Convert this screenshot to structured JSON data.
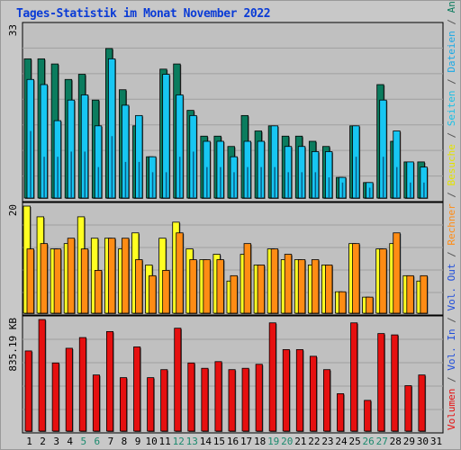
{
  "title": "Tages-Statistik im Monat November 2022",
  "colors": {
    "anfragen": "#0b7c5e",
    "dateien": "#17c6f2",
    "seiten": "#19b3d9",
    "besuche": "#ffff22",
    "rechner": "#ff8c14",
    "volumen": "#e61010",
    "in": "#1f4ddb",
    "out": "#1f4ddb",
    "panel_bg": "#c0c0c0",
    "frame_bg": "#c8c8c8",
    "title": "#0a3bd6",
    "weekend_label": "#1b8a6e"
  },
  "chart_data": [
    {
      "type": "bar",
      "name_panel": "hits",
      "ymax_label": "33",
      "ylim": [
        0,
        33
      ],
      "categories": [
        "1",
        "2",
        "3",
        "4",
        "5",
        "6",
        "7",
        "8",
        "9",
        "10",
        "11",
        "12",
        "13",
        "14",
        "15",
        "16",
        "17",
        "18",
        "19",
        "20",
        "21",
        "22",
        "23",
        "24",
        "25",
        "26",
        "27",
        "28",
        "29",
        "30",
        "31"
      ],
      "series": [
        {
          "name": "Anfragen",
          "values": [
            27,
            27,
            26,
            23,
            24,
            19,
            29,
            21,
            14,
            8,
            25,
            26,
            17,
            12,
            12,
            10,
            16,
            13,
            14,
            12,
            12,
            11,
            10,
            4,
            14,
            3,
            22,
            11,
            7,
            7,
            0
          ]
        },
        {
          "name": "Dateien",
          "values": [
            23,
            22,
            15,
            19,
            20,
            14,
            27,
            18,
            16,
            8,
            24,
            20,
            16,
            11,
            11,
            8,
            11,
            11,
            14,
            10,
            10,
            9,
            9,
            4,
            14,
            3,
            19,
            13,
            7,
            6,
            0
          ]
        },
        {
          "name": "Seiten",
          "values": [
            13,
            8,
            8,
            9,
            9,
            6,
            12,
            7,
            7,
            5,
            5,
            8,
            9,
            6,
            6,
            5,
            6,
            6,
            6,
            5,
            5,
            5,
            4,
            3,
            8,
            2,
            8,
            6,
            3,
            3,
            0
          ]
        }
      ]
    },
    {
      "type": "bar",
      "name_panel": "visits",
      "ymax_label": "20",
      "ylim": [
        0,
        20
      ],
      "categories": [
        "1",
        "2",
        "3",
        "4",
        "5",
        "6",
        "7",
        "8",
        "9",
        "10",
        "11",
        "12",
        "13",
        "14",
        "15",
        "16",
        "17",
        "18",
        "19",
        "20",
        "21",
        "22",
        "23",
        "24",
        "25",
        "26",
        "27",
        "28",
        "29",
        "30",
        "31"
      ],
      "series": [
        {
          "name": "Besuche",
          "values": [
            20,
            18,
            12,
            13,
            18,
            14,
            14,
            12,
            15,
            9,
            14,
            17,
            12,
            10,
            11,
            6,
            11,
            9,
            12,
            10,
            10,
            9,
            9,
            4,
            13,
            3,
            12,
            13,
            7,
            6,
            0
          ]
        },
        {
          "name": "Rechner",
          "values": [
            12,
            13,
            12,
            14,
            12,
            8,
            14,
            14,
            10,
            7,
            8,
            15,
            10,
            10,
            10,
            7,
            13,
            9,
            12,
            11,
            10,
            10,
            9,
            4,
            13,
            3,
            12,
            15,
            7,
            7,
            0
          ]
        }
      ]
    },
    {
      "type": "bar",
      "name_panel": "volume",
      "ymax_label": "835.19 KB",
      "ylim": [
        0,
        835.19
      ],
      "categories": [
        "1",
        "2",
        "3",
        "4",
        "5",
        "6",
        "7",
        "8",
        "9",
        "10",
        "11",
        "12",
        "13",
        "14",
        "15",
        "16",
        "17",
        "18",
        "19",
        "20",
        "21",
        "22",
        "23",
        "24",
        "25",
        "26",
        "27",
        "28",
        "29",
        "30",
        "31"
      ],
      "series": [
        {
          "name": "Volumen",
          "values": [
            600,
            835,
            510,
            620,
            700,
            420,
            745,
            400,
            630,
            400,
            460,
            770,
            510,
            470,
            520,
            460,
            470,
            500,
            810,
            610,
            610,
            560,
            460,
            280,
            810,
            230,
            730,
            720,
            340,
            420,
            0
          ]
        }
      ]
    }
  ],
  "x_labels": [
    "1",
    "2",
    "3",
    "4",
    "5",
    "6",
    "7",
    "8",
    "9",
    "10",
    "11",
    "12",
    "13",
    "14",
    "15",
    "16",
    "17",
    "18",
    "19",
    "20",
    "21",
    "22",
    "23",
    "24",
    "25",
    "26",
    "27",
    "28",
    "29",
    "30",
    "31"
  ],
  "weekend_days": [
    "5",
    "6",
    "12",
    "13",
    "19",
    "20",
    "26",
    "27"
  ],
  "right_legend": {
    "top": [
      {
        "text": "Anfragen",
        "color": "#0b7c5e"
      },
      {
        "text": " / ",
        "color": "#555555"
      },
      {
        "text": "Dateien",
        "color": "#17a9e6"
      },
      {
        "text": " / ",
        "color": "#555555"
      },
      {
        "text": "Seiten",
        "color": "#19c0e6"
      },
      {
        "text": " / ",
        "color": "#555555"
      },
      {
        "text": "Besuche",
        "color": "#e3e300"
      },
      {
        "text": " / ",
        "color": "#555555"
      },
      {
        "text": "Rechner",
        "color": "#ff8c14"
      },
      {
        "text": " / ",
        "color": "#555555"
      },
      {
        "text": "Vol. Out",
        "color": "#1f4ddb"
      },
      {
        "text": " / ",
        "color": "#555555"
      },
      {
        "text": "Vol. In",
        "color": "#1f4ddb"
      },
      {
        "text": " / ",
        "color": "#555555"
      },
      {
        "text": "Volumen",
        "color": "#e61010"
      }
    ]
  }
}
